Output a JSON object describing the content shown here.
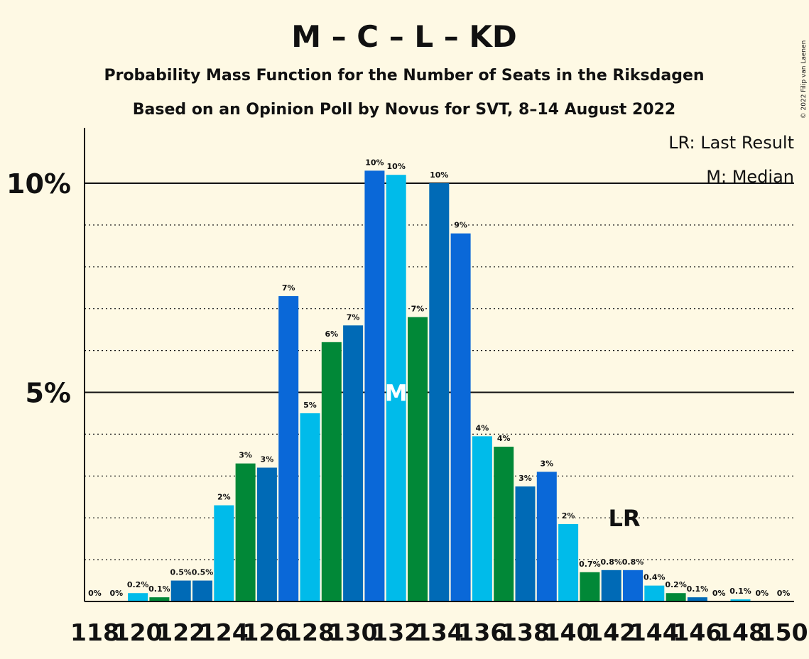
{
  "title": "M – C – L – KD",
  "subtitle1": "Probability Mass Function for the Number of Seats in the Riksdagen",
  "subtitle2": "Based on an Opinion Poll by Novus for SVT, 8–14 August 2022",
  "copyright": "© 2022 Filip van Laenen",
  "legend": {
    "last_result": "LR: Last Result",
    "median": "M: Median"
  },
  "colors": {
    "background": "#fef9e4",
    "series": [
      "#00bbea",
      "#018837",
      "#006ab6",
      "#0a68d8"
    ]
  },
  "chart_data": {
    "type": "bar",
    "x": [
      118,
      119,
      120,
      121,
      122,
      123,
      124,
      125,
      126,
      127,
      128,
      129,
      130,
      131,
      132,
      133,
      134,
      135,
      136,
      137,
      138,
      139,
      140,
      141,
      142,
      143,
      144,
      145,
      146,
      147,
      148,
      149,
      150
    ],
    "values": [
      0,
      0,
      0.2,
      0.1,
      0.5,
      0.5,
      2.3,
      3.3,
      3.2,
      7.3,
      4.5,
      6.2,
      6.6,
      10.3,
      10.2,
      6.8,
      10.0,
      8.8,
      3.95,
      3.7,
      2.75,
      3.1,
      1.85,
      0.7,
      0.75,
      0.75,
      0.38,
      0.2,
      0.1,
      0,
      0.05,
      0,
      0
    ],
    "data_labels": [
      "0%",
      "0%",
      "0.2%",
      "0.1%",
      "0.5%",
      "0.5%",
      "2%",
      "3%",
      "3%",
      "7%",
      "5%",
      "6%",
      "7%",
      "10%",
      "10%",
      "7%",
      "10%",
      "9%",
      "4%",
      "4%",
      "3%",
      "3%",
      "2%",
      "0.7%",
      "0.8%",
      "0.8%",
      "0.4%",
      "0.2%",
      "0.1%",
      "0%",
      "0.1%",
      "0%",
      "0%"
    ],
    "color_index": [
      0,
      1,
      0,
      1,
      2,
      2,
      0,
      1,
      2,
      3,
      0,
      1,
      2,
      3,
      0,
      1,
      2,
      3,
      0,
      1,
      2,
      3,
      0,
      1,
      2,
      3,
      0,
      1,
      2,
      3,
      0,
      1,
      2
    ],
    "x_tick_labels": [
      "118",
      "120",
      "122",
      "124",
      "126",
      "128",
      "130",
      "132",
      "134",
      "136",
      "138",
      "140",
      "142",
      "144",
      "146",
      "148",
      "150"
    ],
    "y_tick_labels": [
      "5%",
      "10%"
    ],
    "y_ticks": [
      5,
      10
    ],
    "ylim": [
      0,
      11.3
    ],
    "median_seat": 132,
    "median_marker": "M",
    "last_result_seat": 143,
    "last_result_marker": "LR",
    "grid": "dotted minor, solid major"
  }
}
